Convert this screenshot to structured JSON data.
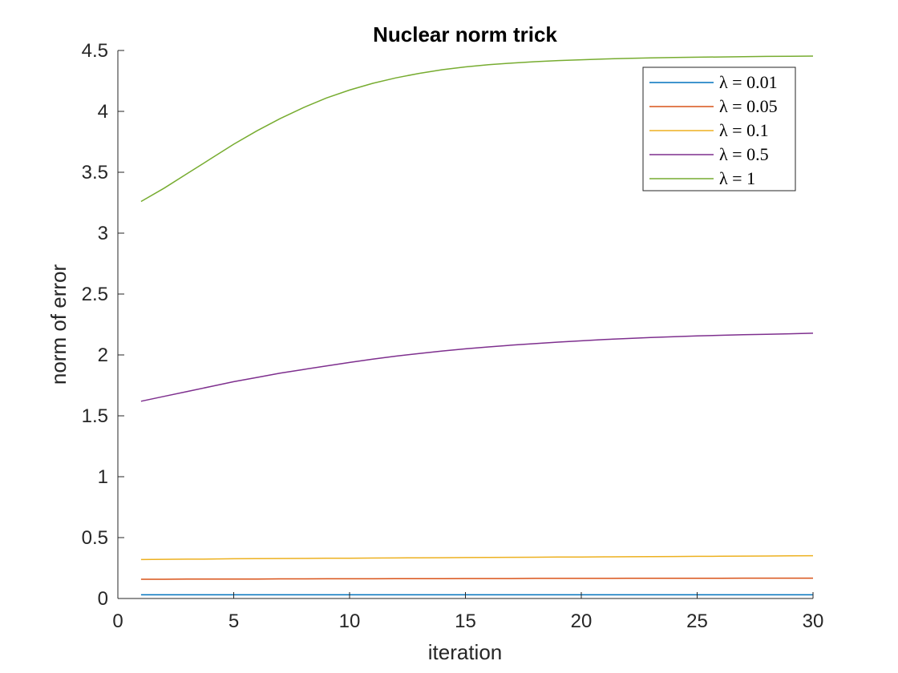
{
  "chart_data": {
    "type": "line",
    "title": "Nuclear norm trick",
    "xlabel": "iteration",
    "ylabel": "norm of error",
    "xlim": [
      0,
      30
    ],
    "ylim": [
      0,
      4.5
    ],
    "xticks": [
      0,
      5,
      10,
      15,
      20,
      25,
      30
    ],
    "yticks": [
      0,
      0.5,
      1,
      1.5,
      2,
      2.5,
      3,
      3.5,
      4,
      4.5
    ],
    "xtick_labels": [
      "0",
      "5",
      "10",
      "15",
      "20",
      "25",
      "30"
    ],
    "ytick_labels": [
      "0",
      "0.5",
      "1",
      "1.5",
      "2",
      "2.5",
      "3",
      "3.5",
      "4",
      "4.5"
    ],
    "grid": false,
    "legend_position": "top-right",
    "x": [
      1,
      2,
      3,
      4,
      5,
      6,
      7,
      8,
      9,
      10,
      11,
      12,
      13,
      14,
      15,
      16,
      17,
      18,
      19,
      20,
      21,
      22,
      23,
      24,
      25,
      26,
      27,
      28,
      29,
      30
    ],
    "series": [
      {
        "name": "λ = 0.01",
        "color": "#0072BD",
        "values": [
          0.03,
          0.03,
          0.03,
          0.03,
          0.03,
          0.03,
          0.03,
          0.03,
          0.03,
          0.03,
          0.03,
          0.03,
          0.03,
          0.03,
          0.03,
          0.03,
          0.03,
          0.03,
          0.03,
          0.03,
          0.03,
          0.03,
          0.03,
          0.03,
          0.03,
          0.03,
          0.03,
          0.03,
          0.03,
          0.03
        ]
      },
      {
        "name": "λ = 0.05",
        "color": "#D95319",
        "values": [
          0.158,
          0.158,
          0.159,
          0.159,
          0.16,
          0.16,
          0.161,
          0.161,
          0.162,
          0.162,
          0.162,
          0.163,
          0.163,
          0.163,
          0.164,
          0.164,
          0.164,
          0.165,
          0.165,
          0.165,
          0.165,
          0.166,
          0.166,
          0.166,
          0.166,
          0.166,
          0.167,
          0.167,
          0.167,
          0.167
        ]
      },
      {
        "name": "λ = 0.1",
        "color": "#EDB120",
        "values": [
          0.32,
          0.322,
          0.323,
          0.324,
          0.326,
          0.327,
          0.328,
          0.329,
          0.33,
          0.331,
          0.332,
          0.333,
          0.334,
          0.335,
          0.336,
          0.337,
          0.338,
          0.339,
          0.34,
          0.341,
          0.342,
          0.343,
          0.344,
          0.345,
          0.346,
          0.347,
          0.348,
          0.349,
          0.35,
          0.351
        ]
      },
      {
        "name": "λ = 0.5",
        "color": "#7E2F8E",
        "values": [
          1.62,
          1.66,
          1.7,
          1.74,
          1.78,
          1.815,
          1.85,
          1.88,
          1.91,
          1.938,
          1.965,
          1.99,
          2.012,
          2.032,
          2.05,
          2.066,
          2.08,
          2.093,
          2.105,
          2.116,
          2.126,
          2.135,
          2.143,
          2.15,
          2.156,
          2.161,
          2.166,
          2.17,
          2.174,
          2.178
        ]
      },
      {
        "name": "λ = 1",
        "color": "#77AC30",
        "values": [
          3.26,
          3.37,
          3.49,
          3.61,
          3.73,
          3.84,
          3.94,
          4.03,
          4.11,
          4.175,
          4.23,
          4.275,
          4.312,
          4.342,
          4.365,
          4.383,
          4.397,
          4.408,
          4.417,
          4.424,
          4.43,
          4.435,
          4.439,
          4.442,
          4.445,
          4.447,
          4.449,
          4.451,
          4.452,
          4.454
        ]
      }
    ]
  }
}
